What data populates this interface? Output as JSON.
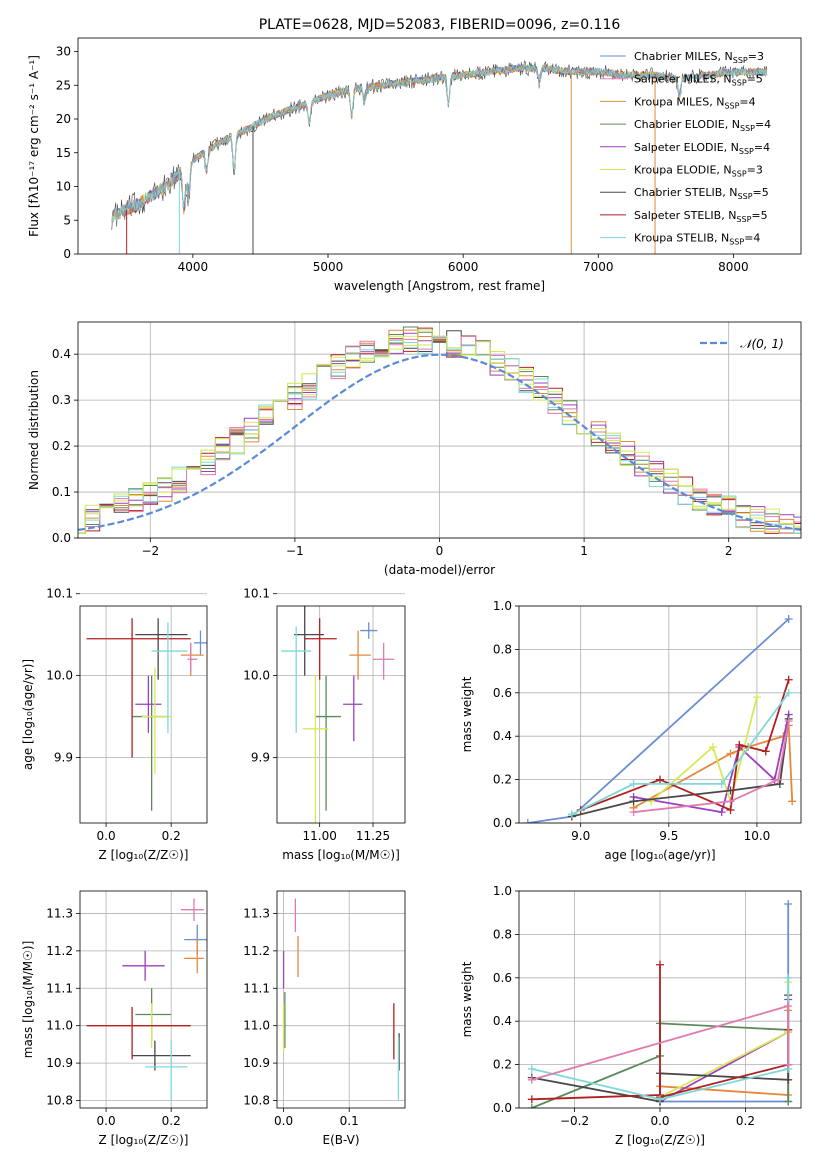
{
  "colors": [
    "#6a8fd4",
    "#e5883c",
    "#d89040",
    "#5a8a5a",
    "#9a40c0",
    "#d8e858",
    "#484848",
    "#b02020",
    "#7fd8d8",
    "#e07ab0",
    "#c8e850",
    "#f29a3a"
  ],
  "chart_data": [
    {
      "id": "spectrum",
      "type": "line",
      "title": "PLATE=0628, MJD=52083, FIBERID=0096, z=0.116",
      "xlabel": "wavelength [Angstrom, rest frame]",
      "ylabel": "Flux [fλ10⁻¹⁷ erg cm⁻² s⁻¹ A⁻¹]",
      "xlim": [
        3150,
        8500
      ],
      "ylim": [
        0,
        32
      ],
      "xticks": [
        4000,
        5000,
        6000,
        7000,
        8000
      ],
      "yticks": [
        0,
        5,
        10,
        15,
        20,
        25,
        30
      ],
      "continuum": {
        "x": [
          3400,
          3600,
          3800,
          4000,
          4200,
          4400,
          4600,
          4800,
          5000,
          5200,
          5400,
          5600,
          5800,
          6000,
          6200,
          6400,
          6600,
          6800,
          7000,
          7200,
          7400,
          7600,
          7800,
          8000,
          8200
        ],
        "y": [
          5.5,
          7.5,
          10,
          14,
          16.5,
          18.5,
          20.5,
          22,
          23.5,
          24.5,
          25,
          25.5,
          26,
          26.5,
          27,
          27.5,
          27.5,
          27,
          27,
          26.5,
          26.5,
          26,
          26.5,
          27,
          27
        ]
      },
      "legend_position": "upper right",
      "legend": [
        {
          "label": "Chabrier MILES, N",
          "sub": "SSP",
          "suffix": "=3"
        },
        {
          "label": "Salpeter MILES, N",
          "sub": "SSP",
          "suffix": "=5"
        },
        {
          "label": "Kroupa MILES, N",
          "sub": "SSP",
          "suffix": "=4"
        },
        {
          "label": "Chabrier ELODIE, N",
          "sub": "SSP",
          "suffix": "=4"
        },
        {
          "label": "Salpeter ELODIE, N",
          "sub": "SSP",
          "suffix": "=4"
        },
        {
          "label": "Kroupa ELODIE, N",
          "sub": "SSP",
          "suffix": "=3"
        },
        {
          "label": "Chabrier STELIB, N",
          "sub": "SSP",
          "suffix": "=5"
        },
        {
          "label": "Salpeter STELIB, N",
          "sub": "SSP",
          "suffix": "=5"
        },
        {
          "label": "Kroupa STELIB, N",
          "sub": "SSP",
          "suffix": "=4"
        }
      ]
    },
    {
      "id": "residuals",
      "type": "area",
      "xlabel": "(data-model)/error",
      "ylabel": "Normed distribution",
      "xlim": [
        -2.5,
        2.5
      ],
      "ylim": [
        0,
        0.47
      ],
      "xticks": [
        -2,
        -1,
        0,
        1,
        2
      ],
      "xtick_labels": [
        "−2",
        "−1",
        "0",
        "1",
        "2"
      ],
      "yticks": [
        0.0,
        0.1,
        0.2,
        0.3,
        0.4
      ],
      "ytick_labels": [
        "0.0",
        "0.1",
        "0.2",
        "0.3",
        "0.4"
      ],
      "normal_label": "𝒩(0, 1)",
      "legend_position": "upper right"
    },
    {
      "id": "age_vs_Z",
      "type": "scatter",
      "xlabel": "Z [log₁₀(Z/Z☉)]",
      "ylabel": "age  [log₁₀(age/yr)]",
      "xlim": [
        -0.08,
        0.31
      ],
      "ylim": [
        9.82,
        10.085
      ],
      "xticks": [
        0.0,
        0.2
      ],
      "xtick_labels": [
        "0.0",
        "0.2"
      ],
      "yticks": [
        9.9,
        10.0,
        10.1
      ],
      "ytick_labels": [
        "9.9",
        "10.0",
        "10.1"
      ],
      "points": [
        {
          "x": 0.29,
          "y": 10.04,
          "xe": [
            0.27,
            0.31
          ],
          "ye": [
            10.025,
            10.055
          ],
          "c": 0
        },
        {
          "x": 0.26,
          "y": 10.025,
          "xe": [
            0.23,
            0.3
          ],
          "ye": [
            10.0,
            10.04
          ],
          "c": 1
        },
        {
          "x": 0.26,
          "y": 10.02,
          "xe": [
            0.25,
            0.28
          ],
          "ye": [
            10.005,
            10.04
          ],
          "c": 9
        },
        {
          "x": 0.14,
          "y": 9.95,
          "xe": [
            0.08,
            0.19
          ],
          "ye": [
            9.835,
            10.0
          ],
          "c": 3
        },
        {
          "x": 0.13,
          "y": 9.965,
          "xe": [
            0.09,
            0.17
          ],
          "ye": [
            9.93,
            10.0
          ],
          "c": 4
        },
        {
          "x": 0.15,
          "y": 9.95,
          "xe": [
            0.11,
            0.2
          ],
          "ye": [
            9.88,
            10.01
          ],
          "c": 5
        },
        {
          "x": 0.16,
          "y": 10.05,
          "xe": [
            0.09,
            0.25
          ],
          "ye": [
            9.995,
            10.07
          ],
          "c": 6
        },
        {
          "x": 0.08,
          "y": 10.045,
          "xe": [
            -0.06,
            0.26
          ],
          "ye": [
            9.9,
            10.07
          ],
          "c": 7
        },
        {
          "x": 0.19,
          "y": 10.03,
          "xe": [
            0.14,
            0.25
          ],
          "ye": [
            9.93,
            10.065
          ],
          "c": 8
        }
      ]
    },
    {
      "id": "age_vs_mass",
      "type": "scatter",
      "xlabel": "mass [log₁₀(M/M☉)]",
      "ylabel": "",
      "xlim": [
        10.8,
        11.4
      ],
      "ylim": [
        9.82,
        10.085
      ],
      "xticks": [
        11.0,
        11.25
      ],
      "xtick_labels": [
        "11.00",
        "11.25"
      ],
      "yticks": [
        9.9,
        10.0,
        10.1
      ],
      "ytick_labels": [
        "9.9",
        "10.0",
        "10.1"
      ],
      "points": [
        {
          "x": 11.23,
          "y": 10.055,
          "xe": [
            11.19,
            11.27
          ],
          "ye": [
            10.045,
            10.065
          ],
          "c": 0
        },
        {
          "x": 11.18,
          "y": 10.025,
          "xe": [
            11.14,
            11.24
          ],
          "ye": [
            9.995,
            10.055
          ],
          "c": 1
        },
        {
          "x": 11.3,
          "y": 10.02,
          "xe": [
            11.25,
            11.35
          ],
          "ye": [
            9.995,
            10.04
          ],
          "c": 9
        },
        {
          "x": 11.03,
          "y": 9.95,
          "xe": [
            10.98,
            11.1
          ],
          "ye": [
            9.835,
            10.0
          ],
          "c": 3
        },
        {
          "x": 11.16,
          "y": 9.965,
          "xe": [
            11.11,
            11.2
          ],
          "ye": [
            9.92,
            10.0
          ],
          "c": 4
        },
        {
          "x": 10.98,
          "y": 9.935,
          "xe": [
            10.92,
            11.04
          ],
          "ye": [
            9.82,
            10.0
          ],
          "c": 5
        },
        {
          "x": 10.93,
          "y": 10.05,
          "xe": [
            10.88,
            11.02
          ],
          "ye": [
            10.0,
            10.095
          ],
          "c": 6
        },
        {
          "x": 11.0,
          "y": 10.045,
          "xe": [
            10.93,
            11.08
          ],
          "ye": [
            9.995,
            10.07
          ],
          "c": 7
        },
        {
          "x": 10.89,
          "y": 10.03,
          "xe": [
            10.82,
            10.96
          ],
          "ye": [
            9.93,
            10.06
          ],
          "c": 8
        }
      ]
    },
    {
      "id": "weight_vs_age",
      "type": "line",
      "xlabel": "age  [log₁₀(age/yr)]",
      "ylabel": "mass weight",
      "xlim": [
        8.65,
        10.25
      ],
      "ylim": [
        0,
        1.0
      ],
      "xticks": [
        9.0,
        9.5,
        10.0
      ],
      "xtick_labels": [
        "9.0",
        "9.5",
        "10.0"
      ],
      "yticks": [
        0.0,
        0.2,
        0.4,
        0.6,
        0.8,
        1.0
      ],
      "ytick_labels": [
        "0.0",
        "0.2",
        "0.4",
        "0.6",
        "0.8",
        "1.0"
      ],
      "series": [
        {
          "c": 0,
          "x": [
            8.7,
            8.95,
            10.18
          ],
          "y": [
            0.0,
            0.03,
            0.94
          ]
        },
        {
          "c": 1,
          "x": [
            9.3,
            9.85,
            9.95,
            10.15,
            10.18,
            10.2
          ],
          "y": [
            0.07,
            0.32,
            0.35,
            0.4,
            0.45,
            0.1
          ]
        },
        {
          "c": 4,
          "x": [
            9.3,
            9.8,
            9.9,
            10.1,
            10.18
          ],
          "y": [
            0.12,
            0.05,
            0.35,
            0.2,
            0.5
          ]
        },
        {
          "c": 5,
          "x": [
            9.4,
            9.75,
            9.85,
            10.0
          ],
          "y": [
            0.1,
            0.35,
            0.1,
            0.58
          ]
        },
        {
          "c": 6,
          "x": [
            8.95,
            9.3,
            9.85,
            10.13,
            10.18
          ],
          "y": [
            0.03,
            0.1,
            0.15,
            0.18,
            0.48
          ]
        },
        {
          "c": 7,
          "x": [
            9.0,
            9.45,
            9.85,
            9.9,
            10.05,
            10.18
          ],
          "y": [
            0.06,
            0.2,
            0.06,
            0.36,
            0.33,
            0.66
          ]
        },
        {
          "c": 8,
          "x": [
            8.95,
            9.3,
            9.8,
            10.18
          ],
          "y": [
            0.04,
            0.18,
            0.18,
            0.6
          ]
        },
        {
          "c": 9,
          "x": [
            9.3,
            9.85,
            10.12,
            10.18
          ],
          "y": [
            0.05,
            0.1,
            0.2,
            0.47
          ]
        }
      ]
    },
    {
      "id": "mass_vs_Z",
      "type": "scatter",
      "xlabel": "Z [log₁₀(Z/Z☉)]",
      "ylabel": "mass [log₁₀(M/M☉)]",
      "xlim": [
        -0.08,
        0.31
      ],
      "ylim": [
        10.78,
        11.36
      ],
      "xticks": [
        0.0,
        0.2
      ],
      "xtick_labels": [
        "0.0",
        "0.2"
      ],
      "yticks": [
        10.8,
        10.9,
        11.0,
        11.1,
        11.2,
        11.3
      ],
      "ytick_labels": [
        "10.8",
        "10.9",
        "11.0",
        "11.1",
        "11.2",
        "11.3"
      ],
      "points": [
        {
          "x": 0.27,
          "y": 11.31,
          "xe": [
            0.23,
            0.3
          ],
          "ye": [
            11.28,
            11.34
          ],
          "c": 9
        },
        {
          "x": 0.28,
          "y": 11.23,
          "xe": [
            0.24,
            0.31
          ],
          "ye": [
            11.19,
            11.27
          ],
          "c": 0
        },
        {
          "x": 0.28,
          "y": 11.18,
          "xe": [
            0.24,
            0.3
          ],
          "ye": [
            11.14,
            11.23
          ],
          "c": 1
        },
        {
          "x": 0.12,
          "y": 11.16,
          "xe": [
            0.05,
            0.18
          ],
          "ye": [
            11.12,
            11.2
          ],
          "c": 4
        },
        {
          "x": 0.14,
          "y": 11.03,
          "xe": [
            0.09,
            0.2
          ],
          "ye": [
            10.96,
            11.1
          ],
          "c": 3
        },
        {
          "x": 0.14,
          "y": 11.0,
          "xe": [
            0.09,
            0.2
          ],
          "ye": [
            10.94,
            11.06
          ],
          "c": 5
        },
        {
          "x": 0.08,
          "y": 11.0,
          "xe": [
            -0.06,
            0.26
          ],
          "ye": [
            10.91,
            11.05
          ],
          "c": 7
        },
        {
          "x": 0.15,
          "y": 10.92,
          "xe": [
            0.08,
            0.26
          ],
          "ye": [
            10.88,
            10.96
          ],
          "c": 6
        },
        {
          "x": 0.2,
          "y": 10.89,
          "xe": [
            0.12,
            0.25
          ],
          "ye": [
            10.8,
            10.96
          ],
          "c": 8
        }
      ]
    },
    {
      "id": "mass_vs_EBV",
      "type": "scatter",
      "xlabel": "E(B-V)",
      "ylabel": "",
      "xlim": [
        -0.01,
        0.185
      ],
      "ylim": [
        10.78,
        11.36
      ],
      "xticks": [
        0.0,
        0.1
      ],
      "xtick_labels": [
        "0.0",
        "0.1"
      ],
      "yticks": [
        10.8,
        10.9,
        11.0,
        11.1,
        11.2,
        11.3
      ],
      "ytick_labels": [
        "10.8",
        "10.9",
        "11.0",
        "11.1",
        "11.2",
        "11.3"
      ],
      "points": [
        {
          "x": 0.018,
          "y": 11.29,
          "xe": [
            0.018,
            0.018
          ],
          "ye": [
            11.25,
            11.34
          ],
          "c": 9
        },
        {
          "x": 0.022,
          "y": 11.18,
          "xe": [
            0.022,
            0.022
          ],
          "ye": [
            11.13,
            11.24
          ],
          "c": 1
        },
        {
          "x": 0.0,
          "y": 11.16,
          "xe": [
            0.0,
            0.0
          ],
          "ye": [
            11.1,
            11.2
          ],
          "c": 4
        },
        {
          "x": 0.002,
          "y": 11.03,
          "xe": [
            0.002,
            0.002
          ],
          "ye": [
            10.94,
            11.09
          ],
          "c": 3
        },
        {
          "x": 0.0,
          "y": 11.0,
          "xe": [
            0.0,
            0.0
          ],
          "ye": [
            10.93,
            11.06
          ],
          "c": 5
        },
        {
          "x": 0.168,
          "y": 11.0,
          "xe": [
            0.168,
            0.168
          ],
          "ye": [
            10.91,
            11.06
          ],
          "c": 7
        },
        {
          "x": 0.176,
          "y": 10.92,
          "xe": [
            0.176,
            0.176
          ],
          "ye": [
            10.88,
            10.98
          ],
          "c": 6
        },
        {
          "x": 0.175,
          "y": 10.89,
          "xe": [
            0.175,
            0.175
          ],
          "ye": [
            10.8,
            10.97
          ],
          "c": 8
        }
      ]
    },
    {
      "id": "weight_vs_Z",
      "type": "line",
      "xlabel": "Z [log₁₀(Z/Z☉)]",
      "ylabel": "mass weight",
      "xlim": [
        -0.33,
        0.33
      ],
      "ylim": [
        0,
        1.0
      ],
      "xticks": [
        -0.2,
        0.0,
        0.2
      ],
      "xtick_labels": [
        "−0.2",
        "0.0",
        "0.2"
      ],
      "yticks": [
        0.0,
        0.2,
        0.4,
        0.6,
        0.8,
        1.0
      ],
      "ytick_labels": [
        "0.0",
        "0.2",
        "0.4",
        "0.6",
        "0.8",
        "1.0"
      ],
      "series": [
        {
          "c": 0,
          "x": [
            0.0,
            0.3,
            0.3
          ],
          "y": [
            0.03,
            0.03,
            0.94
          ]
        },
        {
          "c": 1,
          "x": [
            0.0,
            0.3,
            0.3
          ],
          "y": [
            0.1,
            0.06,
            0.45
          ]
        },
        {
          "c": 3,
          "x": [
            -0.3,
            0.0,
            0.0,
            0.3,
            0.3
          ],
          "y": [
            0.0,
            0.24,
            0.39,
            0.36,
            0.03
          ]
        },
        {
          "c": 4,
          "x": [
            0.0,
            0.3,
            0.3
          ],
          "y": [
            0.03,
            0.35,
            0.5
          ]
        },
        {
          "c": 5,
          "x": [
            0.0,
            0.3,
            0.3
          ],
          "y": [
            0.05,
            0.35,
            0.58
          ]
        },
        {
          "c": 6,
          "x": [
            -0.3,
            0.0,
            0.0,
            0.3,
            0.3
          ],
          "y": [
            0.14,
            0.03,
            0.16,
            0.13,
            0.52
          ]
        },
        {
          "c": 7,
          "x": [
            -0.3,
            0.0,
            0.0,
            0.0,
            0.3,
            0.3
          ],
          "y": [
            0.04,
            0.06,
            0.66,
            0.05,
            0.2,
            0.36
          ]
        },
        {
          "c": 8,
          "x": [
            -0.3,
            0.0,
            0.3,
            0.3
          ],
          "y": [
            0.18,
            0.04,
            0.18,
            0.6
          ]
        },
        {
          "c": 9,
          "x": [
            -0.3,
            0.3,
            0.3
          ],
          "y": [
            0.13,
            0.47,
            0.2
          ]
        }
      ]
    }
  ]
}
